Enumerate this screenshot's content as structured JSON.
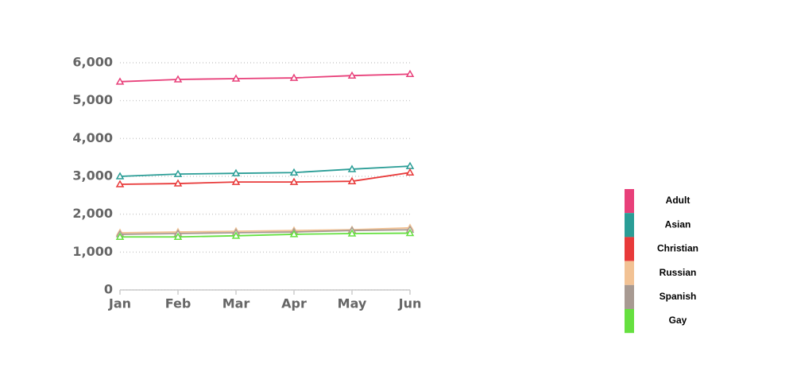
{
  "chart_data": {
    "type": "line",
    "categories": [
      "Jan",
      "Feb",
      "Mar",
      "Apr",
      "May",
      "Jun"
    ],
    "series": [
      {
        "name": "Adult",
        "color": "#e8407a",
        "values": [
          5500,
          5560,
          5580,
          5600,
          5660,
          5700
        ]
      },
      {
        "name": "Asian",
        "color": "#2a9d96",
        "values": [
          3000,
          3060,
          3080,
          3100,
          3190,
          3270
        ]
      },
      {
        "name": "Christian",
        "color": "#e83a3a",
        "values": [
          2790,
          2810,
          2850,
          2850,
          2870,
          3100
        ]
      },
      {
        "name": "Russian",
        "color": "#f2c294",
        "values": [
          1510,
          1530,
          1550,
          1570,
          1590,
          1640
        ]
      },
      {
        "name": "Spanish",
        "color": "#a89a92",
        "values": [
          1470,
          1490,
          1510,
          1530,
          1570,
          1590
        ]
      },
      {
        "name": "Gay",
        "color": "#66e040",
        "values": [
          1400,
          1400,
          1430,
          1470,
          1490,
          1500
        ]
      }
    ],
    "ylim": [
      0,
      6000
    ],
    "yticks": [
      0,
      {
        "value": 1000,
        "label": "1,000"
      },
      {
        "value": 2000,
        "label": "2,000"
      },
      {
        "value": 3000,
        "label": "3,000"
      },
      {
        "value": 4000,
        "label": "4,000"
      },
      {
        "value": 5000,
        "label": "5,000"
      },
      {
        "value": 6000,
        "label": "6,000"
      }
    ],
    "grid": true
  }
}
